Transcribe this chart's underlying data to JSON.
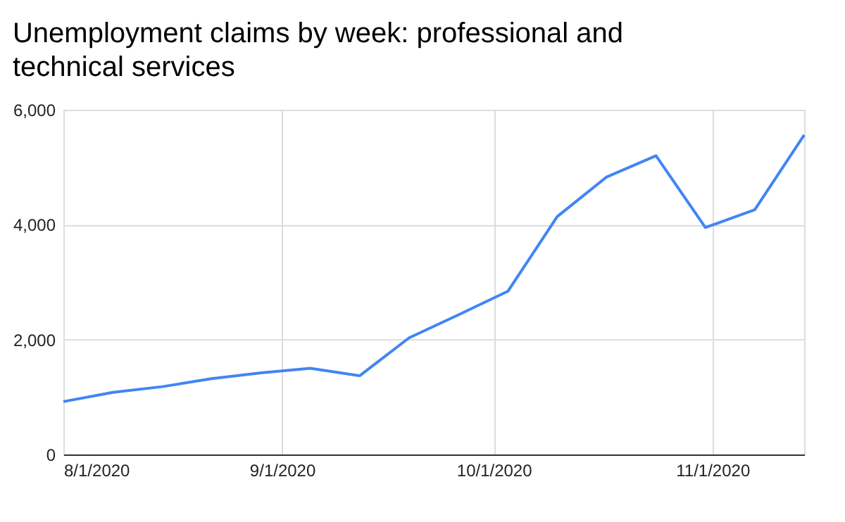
{
  "chart_data": {
    "type": "line",
    "title": "Unemployment claims by week: professional and technical services",
    "x": [
      "2020-08-01",
      "2020-08-08",
      "2020-08-15",
      "2020-08-22",
      "2020-08-29",
      "2020-09-05",
      "2020-09-12",
      "2020-09-19",
      "2020-09-26",
      "2020-10-03",
      "2020-10-10",
      "2020-10-17",
      "2020-10-24",
      "2020-10-31",
      "2020-11-07",
      "2020-11-14"
    ],
    "series": [
      {
        "color": "#4285f4",
        "values": [
          920,
          1080,
          1180,
          1320,
          1420,
          1500,
          1370,
          2030,
          2430,
          2840,
          4140,
          4830,
          5200,
          3950,
          4260,
          5560
        ]
      }
    ],
    "xlim": [
      "2020-08-01",
      "2020-11-14"
    ],
    "xticks": [
      {
        "value": "2020-08-01",
        "label": "8/1/2020"
      },
      {
        "value": "2020-09-01",
        "label": "9/1/2020"
      },
      {
        "value": "2020-10-01",
        "label": "10/1/2020"
      },
      {
        "value": "2020-11-01",
        "label": "11/1/2020"
      }
    ],
    "ylim": [
      0,
      6000
    ],
    "yticks": [
      {
        "value": 0,
        "label": "0"
      },
      {
        "value": 2000,
        "label": "2,000"
      },
      {
        "value": 4000,
        "label": "4,000"
      },
      {
        "value": 6000,
        "label": "6,000"
      }
    ],
    "grid": true,
    "marker": "none",
    "line_style": "solid"
  }
}
